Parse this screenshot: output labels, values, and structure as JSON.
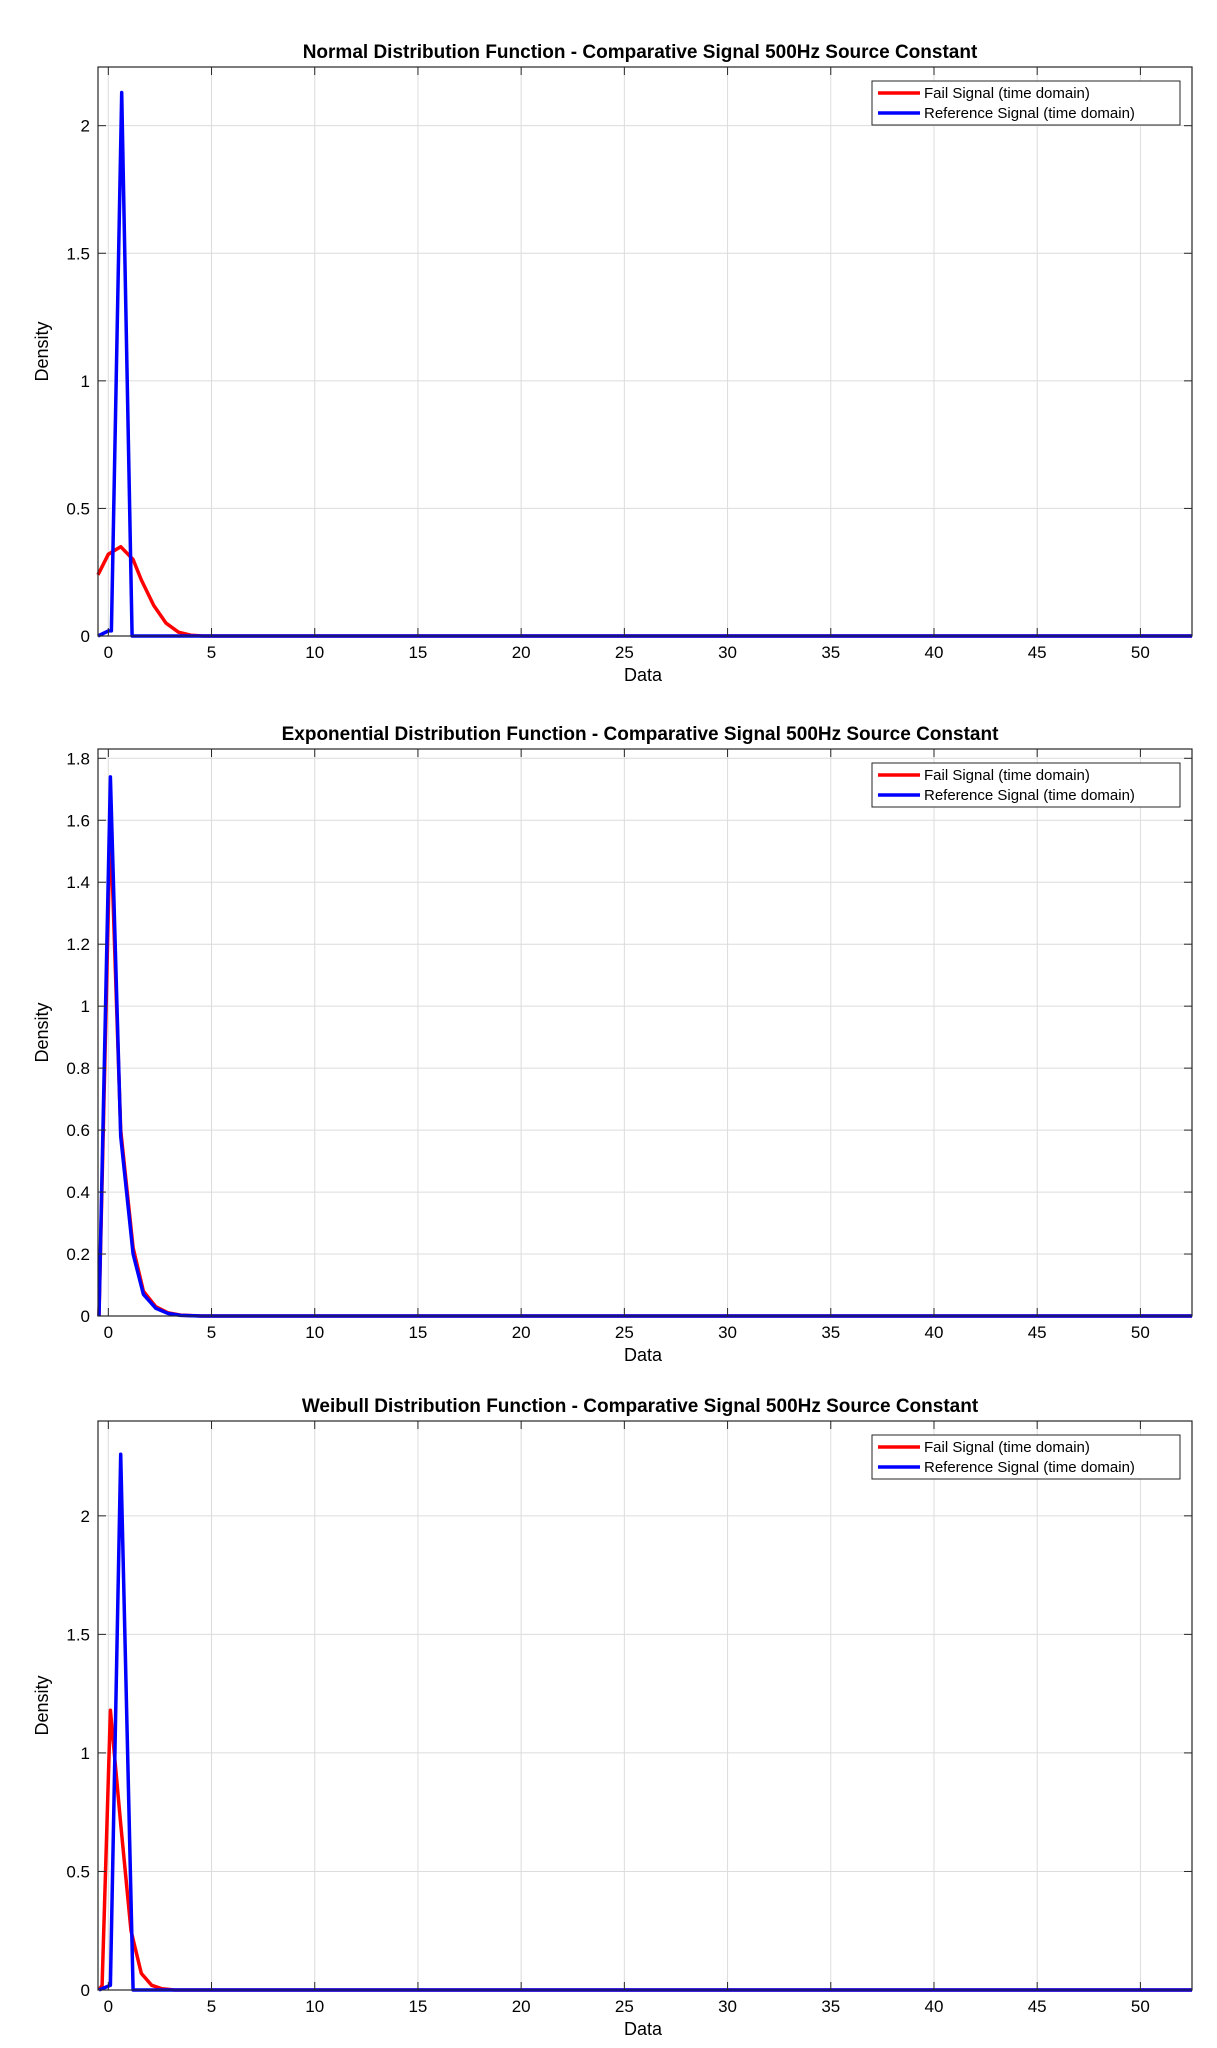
{
  "chart_data": [
    {
      "type": "line",
      "title": "Normal Distribution Function - Comparative Signal 500Hz Source Constant",
      "xlabel": "Data",
      "ylabel": "Density",
      "xlim": [
        -0.5,
        52.5
      ],
      "ylim": [
        0,
        2.23
      ],
      "xticks": [
        0,
        5,
        10,
        15,
        20,
        25,
        30,
        35,
        40,
        45,
        50
      ],
      "yticks": [
        0,
        0.5,
        1,
        1.5,
        2
      ],
      "ytick_labels": [
        "0",
        "0.5",
        "1",
        "1.5",
        "2"
      ],
      "grid": true,
      "legend_position": "top-right",
      "series": [
        {
          "name": "Fail Signal (time domain)",
          "color": "#ff0000",
          "x": [
            -0.5,
            0,
            0.6,
            1.2,
            1.6,
            2.2,
            2.8,
            3.4,
            4.0,
            4.6,
            5.5,
            52.5
          ],
          "y": [
            0.24,
            0.32,
            0.35,
            0.3,
            0.22,
            0.12,
            0.05,
            0.015,
            0.003,
            0,
            0,
            0
          ]
        },
        {
          "name": "Reference Signal (time domain)",
          "color": "#0000ff",
          "x": [
            -0.5,
            0,
            0.15,
            0.65,
            1.15,
            1.35,
            52.5
          ],
          "y": [
            0,
            0.02,
            0.02,
            2.13,
            0,
            0,
            0
          ]
        }
      ]
    },
    {
      "type": "line",
      "title": "Exponential Distribution Function - Comparative Signal 500Hz Source Constant",
      "xlabel": "Data",
      "ylabel": "Density",
      "xlim": [
        -0.5,
        52.5
      ],
      "ylim": [
        0,
        1.83
      ],
      "xticks": [
        0,
        5,
        10,
        15,
        20,
        25,
        30,
        35,
        40,
        45,
        50
      ],
      "yticks": [
        0,
        0.2,
        0.4,
        0.6,
        0.8,
        1,
        1.2,
        1.4,
        1.6,
        1.8
      ],
      "ytick_labels": [
        "0",
        "0.2",
        "0.4",
        "0.6",
        "0.8",
        "1",
        "1.2",
        "1.4",
        "1.6",
        "1.8"
      ],
      "grid": true,
      "legend_position": "top-right",
      "series": [
        {
          "name": "Fail Signal (time domain)",
          "color": "#ff0000",
          "x": [
            -0.45,
            0.1,
            0.6,
            1.2,
            1.7,
            2.3,
            2.9,
            3.5,
            4.5,
            52.5
          ],
          "y": [
            0,
            1.6,
            0.6,
            0.22,
            0.08,
            0.03,
            0.01,
            0.003,
            0,
            0
          ]
        },
        {
          "name": "Reference Signal (time domain)",
          "color": "#0000ff",
          "x": [
            -0.45,
            0.1,
            0.6,
            1.2,
            1.7,
            2.3,
            2.9,
            3.5,
            4.5,
            52.5
          ],
          "y": [
            0,
            1.74,
            0.58,
            0.2,
            0.07,
            0.025,
            0.008,
            0.002,
            0,
            0
          ]
        }
      ]
    },
    {
      "type": "line",
      "title": "Weibull Distribution Function - Comparative Signal 500Hz Source Constant",
      "xlabel": "Data",
      "ylabel": "Density",
      "xlim": [
        -0.5,
        52.5
      ],
      "ylim": [
        0,
        2.4
      ],
      "xticks": [
        0,
        5,
        10,
        15,
        20,
        25,
        30,
        35,
        40,
        45,
        50
      ],
      "yticks": [
        0,
        0.5,
        1,
        1.5,
        2
      ],
      "ytick_labels": [
        "0",
        "0.5",
        "1",
        "1.5",
        "2"
      ],
      "grid": true,
      "legend_position": "top-right",
      "series": [
        {
          "name": "Fail Signal (time domain)",
          "color": "#ff0000",
          "x": [
            -0.45,
            -0.3,
            0.1,
            0.6,
            1.1,
            1.6,
            2.1,
            2.6,
            3.2,
            52.5
          ],
          "y": [
            0,
            0.02,
            1.18,
            0.7,
            0.25,
            0.07,
            0.02,
            0.005,
            0,
            0
          ]
        },
        {
          "name": "Reference Signal (time domain)",
          "color": "#0000ff",
          "x": [
            -0.45,
            0.1,
            0.6,
            1.2,
            1.4,
            52.5
          ],
          "y": [
            0,
            0.02,
            2.26,
            0,
            0,
            0
          ]
        }
      ]
    }
  ]
}
